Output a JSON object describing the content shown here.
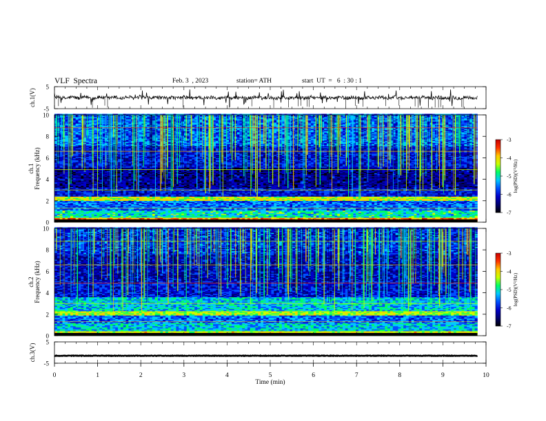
{
  "header": {
    "title": "VLF  Spectra",
    "date": "Feb. 3  , 2023",
    "station": "station= ATH",
    "start": "start  UT  =   6  : 30 : 1"
  },
  "chart_data": [
    {
      "type": "line",
      "panel": "ch1-waveform",
      "ylabel": "ch.1(V)",
      "yticks": [
        "5",
        "-5"
      ],
      "ylim": [
        -5,
        5
      ],
      "xlim": [
        0,
        10
      ],
      "data_end_min": 9.8,
      "baseline": 0,
      "color": "#000000"
    },
    {
      "type": "heatmap",
      "panel": "ch1-spectrogram",
      "channel_label": "ch.1",
      "ylabel": "Frequency  (kHz)",
      "yticks": [
        "0",
        "2",
        "4",
        "6",
        "8",
        "10"
      ],
      "ylim": [
        0,
        10
      ],
      "xlim": [
        0,
        10
      ],
      "data_end_min": 9.8,
      "colorbar": {
        "label": "log(PSD)(V²/Hz)",
        "ticks": [
          "-3",
          "-4",
          "-5",
          "-6",
          "-7"
        ],
        "range": [
          -7,
          -3
        ]
      }
    },
    {
      "type": "heatmap",
      "panel": "ch2-spectrogram",
      "channel_label": "ch.2",
      "ylabel": "Frequency  (kHz)",
      "yticks": [
        "0",
        "2",
        "4",
        "6",
        "8",
        "10"
      ],
      "ylim": [
        0,
        10
      ],
      "xlim": [
        0,
        10
      ],
      "data_end_min": 9.8,
      "colorbar": {
        "label": "log(PSD)(V²/Hz)",
        "ticks": [
          "-3",
          "-4",
          "-5",
          "-6",
          "-7"
        ],
        "range": [
          -7,
          -3
        ]
      }
    },
    {
      "type": "line",
      "panel": "ch3-waveform",
      "ylabel": "ch.3(V)",
      "yticks": [
        "5",
        "-5"
      ],
      "ylim": [
        -5,
        5
      ],
      "xlim": [
        0,
        10
      ],
      "data_end_min": 9.8,
      "baseline": -1.5,
      "color": "#000000"
    }
  ],
  "xaxis": {
    "label": "Time  (min)",
    "ticks": [
      "0",
      "1",
      "2",
      "3",
      "4",
      "5",
      "6",
      "7",
      "8",
      "9",
      "10"
    ]
  },
  "colormap": [
    "#000000",
    "#00006e",
    "#0000c8",
    "#0050ff",
    "#00c8ff",
    "#00ff64",
    "#c8ff00",
    "#ffc800",
    "#ff3200",
    "#c80000",
    "#ffffff"
  ]
}
